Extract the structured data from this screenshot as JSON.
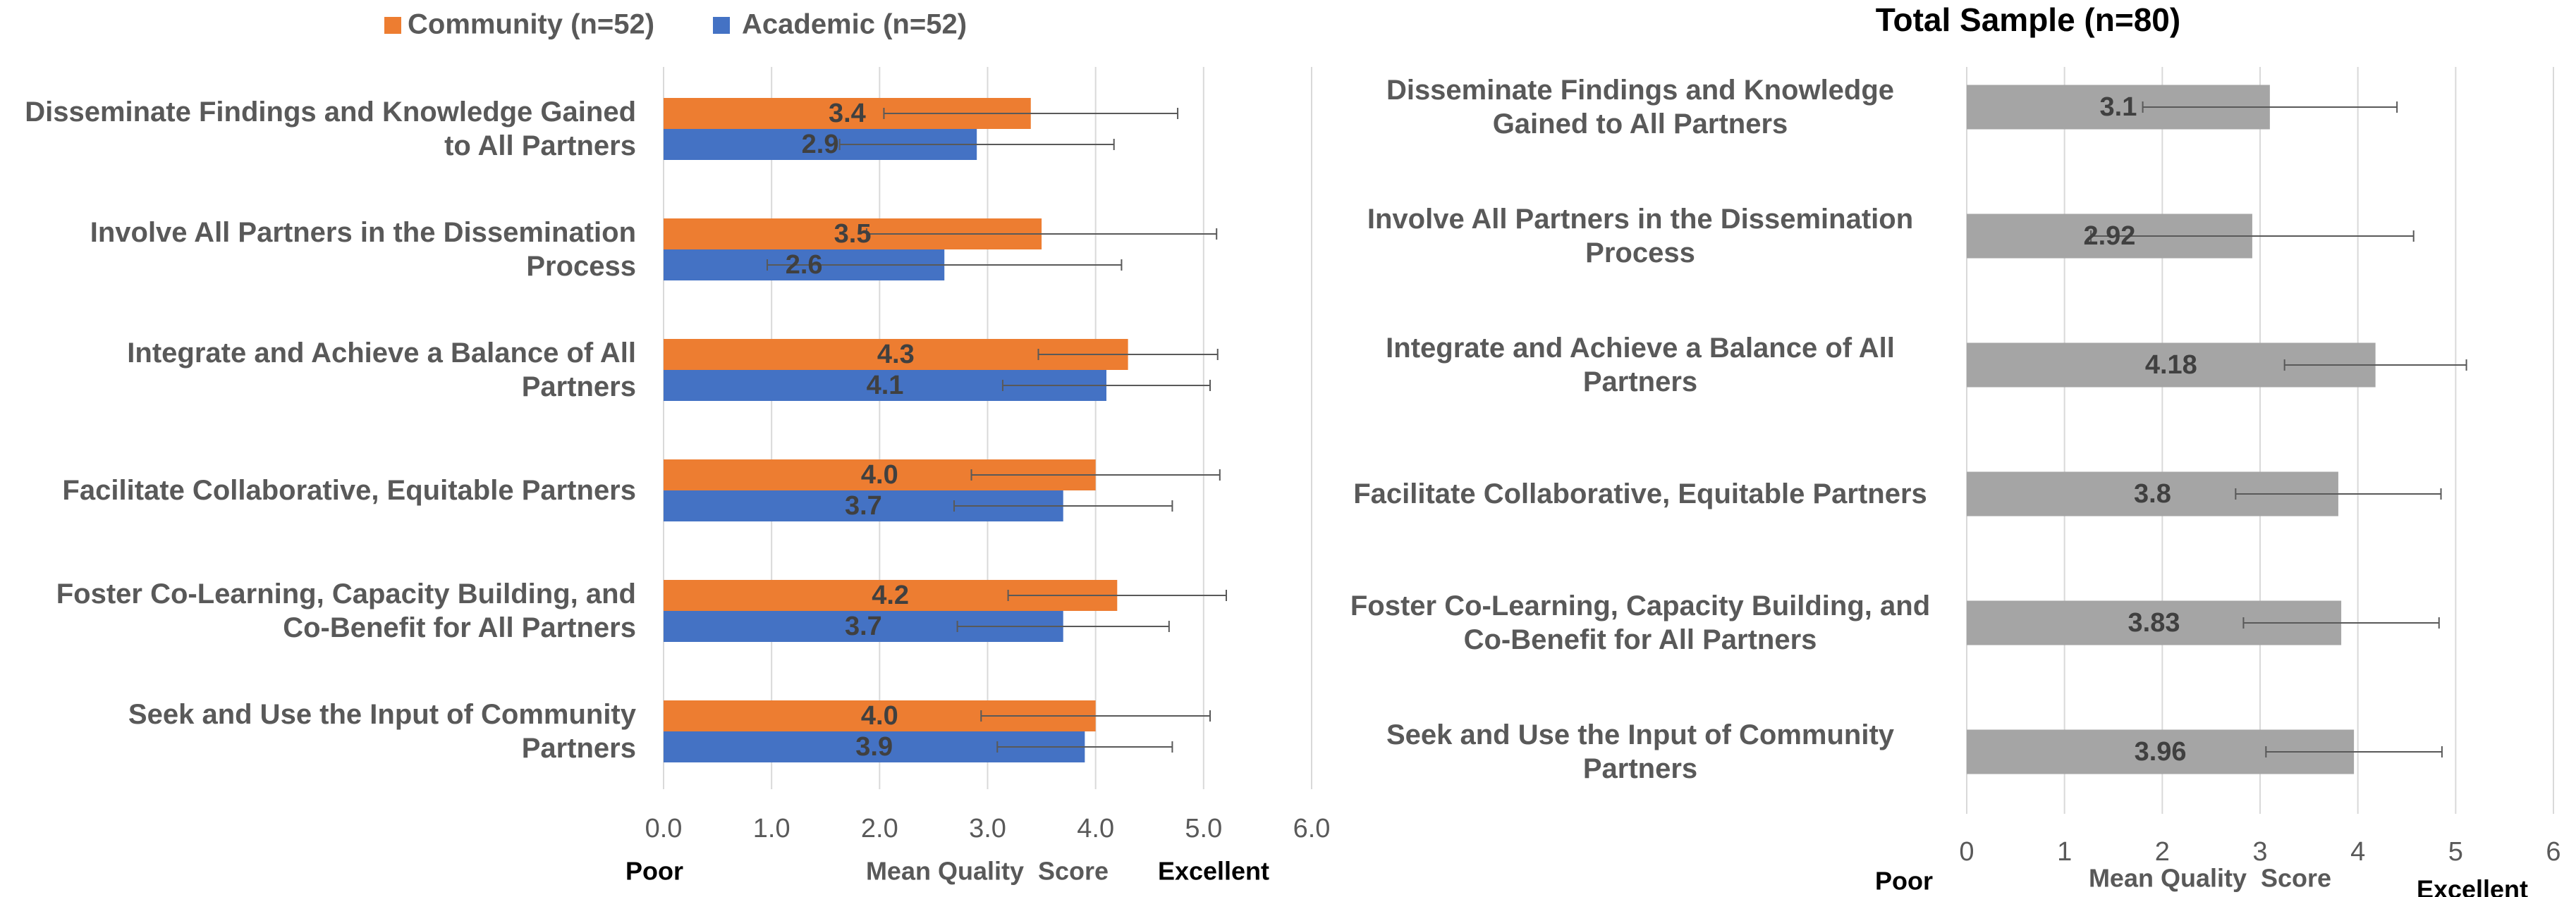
{
  "chart_data": [
    {
      "type": "bar",
      "orientation": "horizontal",
      "categories": [
        "Disseminate Findings and Knowledge Gained to All Partners",
        "Involve All Partners in the Dissemination Process",
        "Integrate and Achieve a Balance of All Partners",
        "Facilitate Collaborative, Equitable Partners",
        "Foster Co-Learning, Capacity Building, and Co-Benefit for All Partners",
        "Seek and Use the Input of Community Partners"
      ],
      "series": [
        {
          "name": "Community (n=52)",
          "color": "#ed7d31",
          "values": [
            3.4,
            3.5,
            4.3,
            4.0,
            4.2,
            4.0
          ],
          "value_labels": [
            "3.4",
            "3.5",
            "4.3",
            "4.0",
            "4.2",
            "4.0"
          ],
          "errors": [
            1.36,
            1.62,
            0.83,
            1.15,
            1.01,
            1.06
          ]
        },
        {
          "name": "Academic (n=52)",
          "color": "#4472c4",
          "values": [
            2.9,
            2.6,
            4.1,
            3.7,
            3.7,
            3.9
          ],
          "errors": [
            1.27,
            1.64,
            0.96,
            1.01,
            0.98,
            0.81
          ]
        }
      ],
      "xlim": [
        0,
        6
      ],
      "xticks": [
        {
          "value": 0,
          "label": "0.0"
        },
        {
          "value": 1,
          "label": "1.0"
        },
        {
          "value": 2,
          "label": "2.0"
        },
        {
          "value": 3,
          "label": "3.0"
        },
        {
          "value": 4,
          "label": "4.0"
        },
        {
          "value": 5,
          "label": "5.0"
        },
        {
          "value": 6,
          "label": "6.0"
        }
      ],
      "annotations": [
        "Poor",
        "Mean Quality  Score",
        "Excellent"
      ],
      "grid": true,
      "legend": "top"
    },
    {
      "type": "bar",
      "orientation": "horizontal",
      "title": "Total Sample (n=80)",
      "categories": [
        "Disseminate Findings and Knowledge Gained to All Partners",
        "Involve All Partners in the Dissemination Process",
        "Integrate and Achieve a Balance of All Partners",
        "Facilitate Collaborative, Equitable Partners",
        "Foster Co-Learning, Capacity Building, and Co-Benefit for All Partners",
        "Seek and Use the Input of Community Partners"
      ],
      "series": [
        {
          "color": "#a5a5a5",
          "values": [
            3.1,
            2.92,
            4.18,
            3.8,
            3.83,
            3.96
          ],
          "errors": [
            1.3,
            1.65,
            0.93,
            1.05,
            1.0,
            0.9
          ]
        }
      ],
      "xlim": [
        0,
        6
      ],
      "xticks": [
        0,
        1,
        2,
        3,
        4,
        5,
        6
      ],
      "annotations": [
        "Poor",
        "Mean Quality  Score",
        "Excellent"
      ],
      "grid": true
    }
  ]
}
